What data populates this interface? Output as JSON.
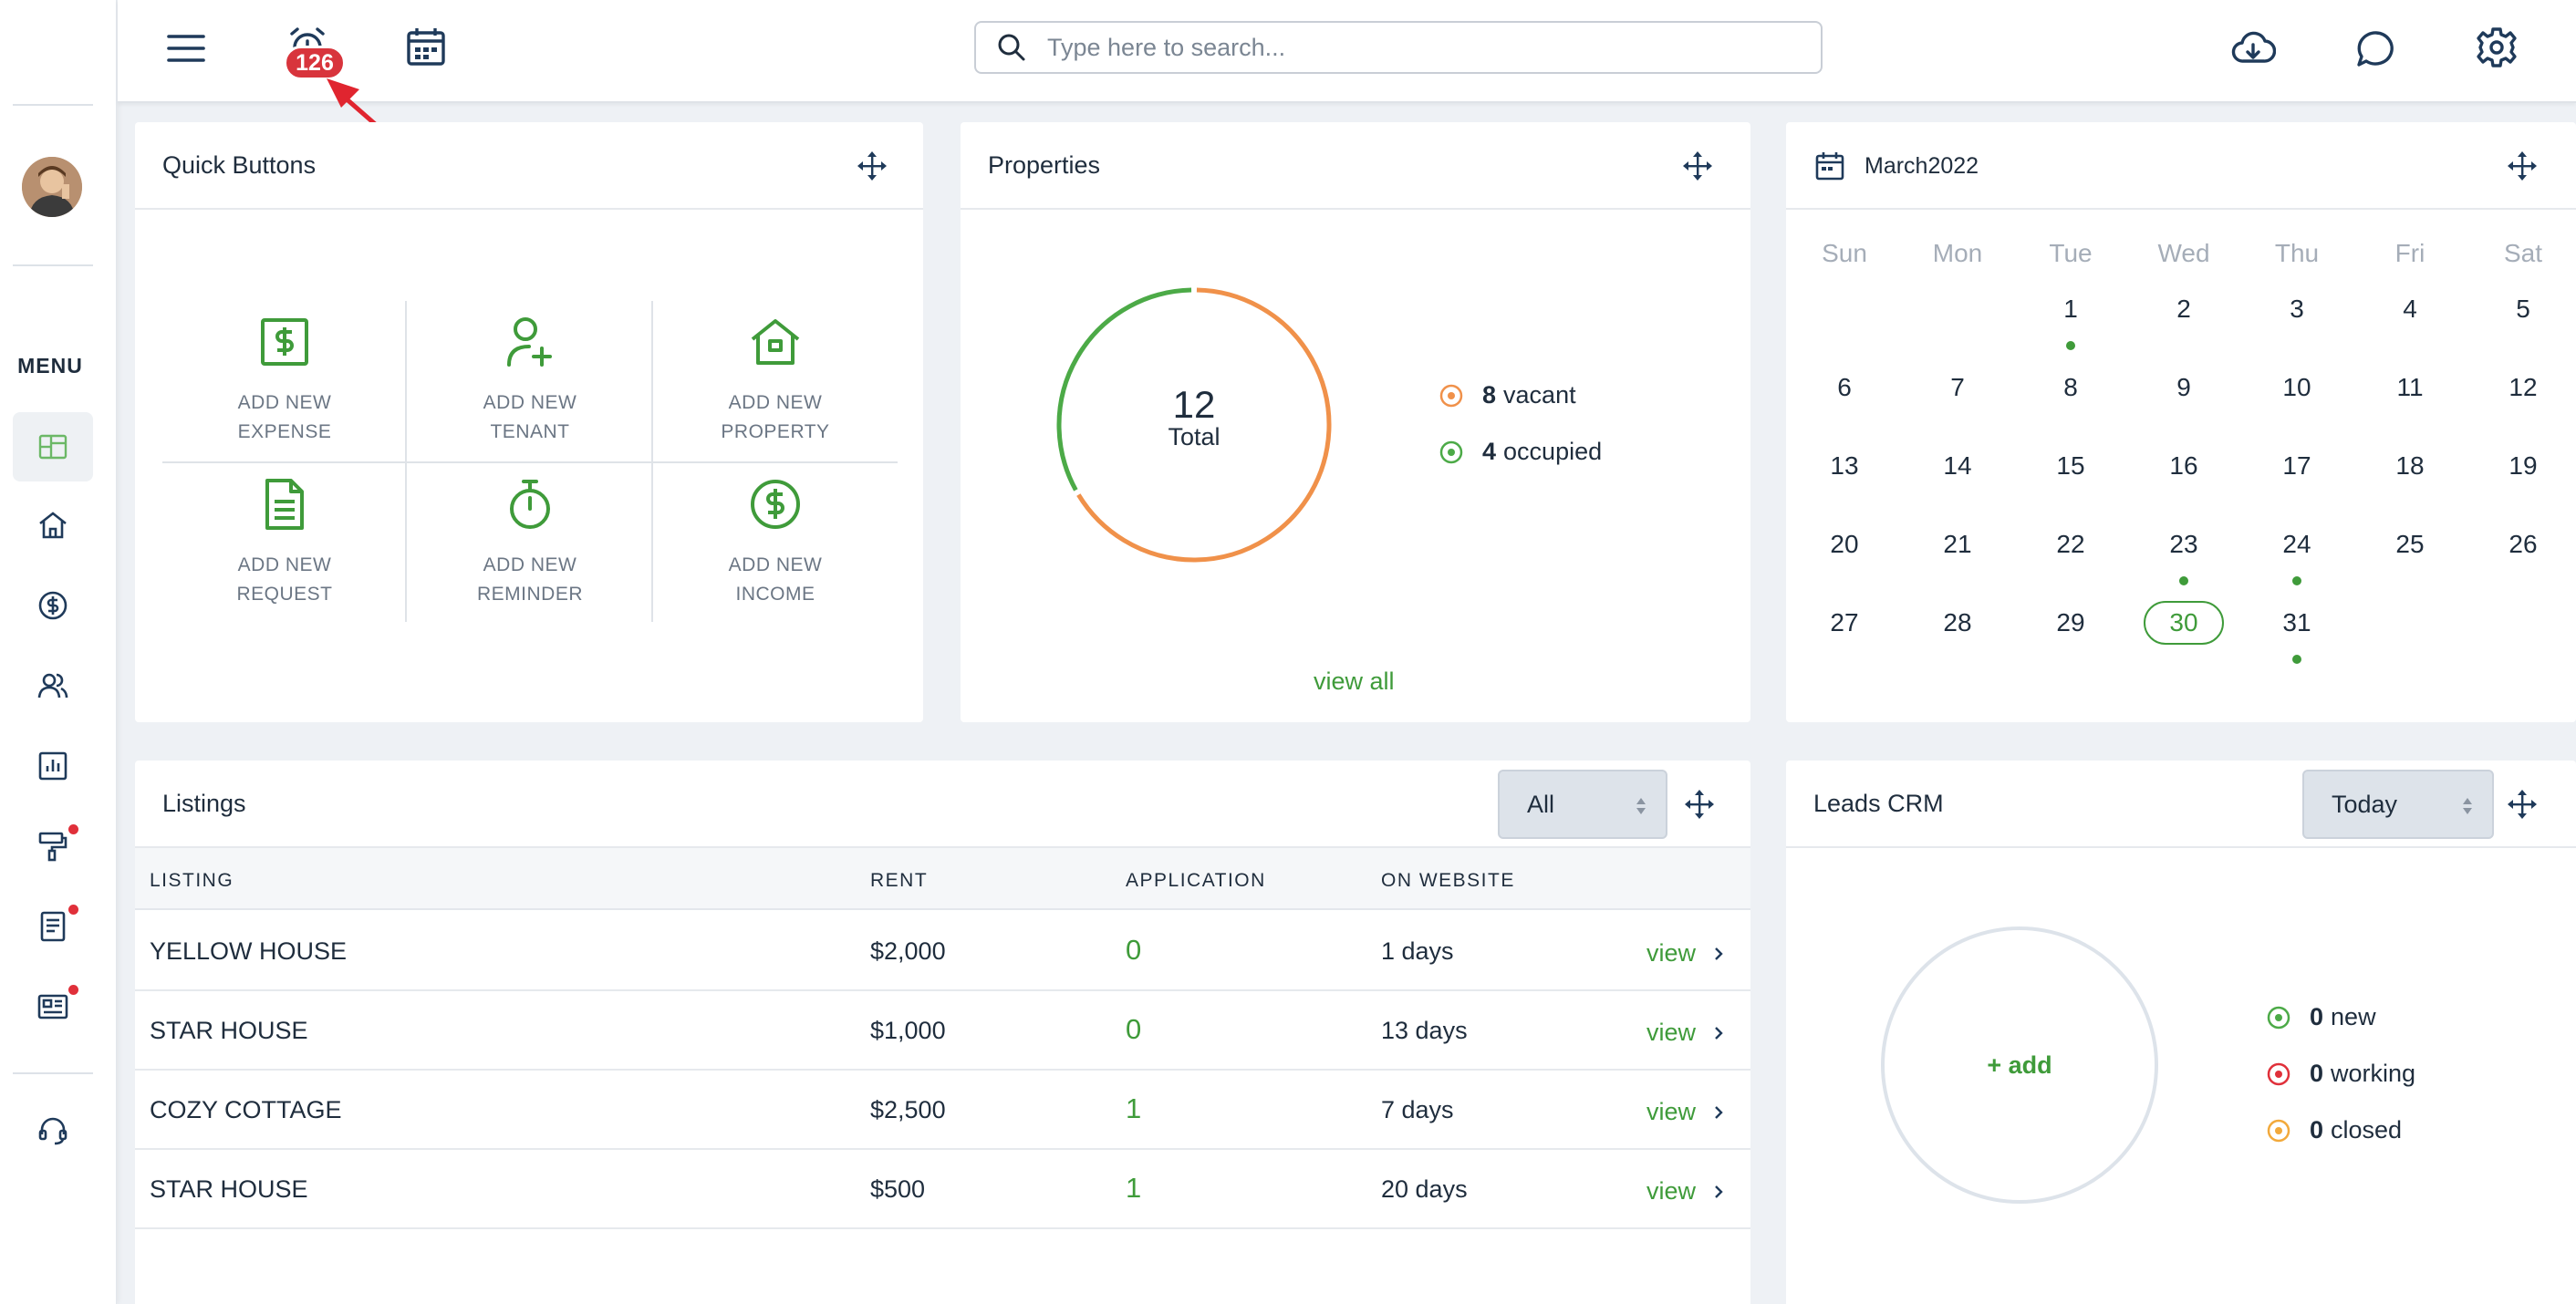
{
  "header": {
    "notification_count": "126",
    "search_placeholder": "Type here to search..."
  },
  "sidebar": {
    "menu_label": "MENU",
    "items": [
      {
        "name": "dashboard",
        "active": true,
        "dot": false
      },
      {
        "name": "home",
        "active": false,
        "dot": false
      },
      {
        "name": "finance",
        "active": false,
        "dot": false
      },
      {
        "name": "tenants",
        "active": false,
        "dot": false
      },
      {
        "name": "reports",
        "active": false,
        "dot": false
      },
      {
        "name": "maintenance",
        "active": false,
        "dot": true
      },
      {
        "name": "documents",
        "active": false,
        "dot": true
      },
      {
        "name": "listings",
        "active": false,
        "dot": true
      },
      {
        "name": "support",
        "active": false,
        "dot": false
      }
    ]
  },
  "quick_buttons": {
    "title": "Quick Buttons",
    "items": [
      {
        "line1": "ADD NEW",
        "line2": "EXPENSE",
        "icon": "dollar-card-icon"
      },
      {
        "line1": "ADD NEW",
        "line2": "TENANT",
        "icon": "user-plus-icon"
      },
      {
        "line1": "ADD NEW",
        "line2": "PROPERTY",
        "icon": "house-icon"
      },
      {
        "line1": "ADD NEW",
        "line2": "REQUEST",
        "icon": "document-icon"
      },
      {
        "line1": "ADD NEW",
        "line2": "REMINDER",
        "icon": "stopwatch-icon"
      },
      {
        "line1": "ADD NEW",
        "line2": "INCOME",
        "icon": "dollar-circle-icon"
      }
    ]
  },
  "properties": {
    "title": "Properties",
    "total": "12",
    "total_label": "Total",
    "vacant_count": "8",
    "vacant_label": "vacant",
    "occupied_count": "4",
    "occupied_label": "occupied",
    "view_all": "view all",
    "colors": {
      "vacant": "#f0914a",
      "occupied": "#4caa47"
    }
  },
  "calendar": {
    "title": "March2022",
    "weekdays": [
      "Sun",
      "Mon",
      "Tue",
      "Wed",
      "Thu",
      "Fri",
      "Sat"
    ],
    "first_weekday": 2,
    "days_in_month": 31,
    "today": 30,
    "event_days": [
      1,
      23,
      24,
      31
    ]
  },
  "listings": {
    "title": "Listings",
    "filter": "All",
    "columns": [
      "LISTING",
      "RENT",
      "APPLICATION",
      "ON WEBSITE"
    ],
    "rows": [
      {
        "listing": "YELLOW HOUSE",
        "rent": "$2,000",
        "application": "0",
        "on_website": "1 days",
        "action": "view"
      },
      {
        "listing": "STAR HOUSE",
        "rent": "$1,000",
        "application": "0",
        "on_website": "13 days",
        "action": "view"
      },
      {
        "listing": "COZY COTTAGE",
        "rent": "$2,500",
        "application": "1",
        "on_website": "7 days",
        "action": "view"
      },
      {
        "listing": "STAR HOUSE",
        "rent": "$500",
        "application": "1",
        "on_website": "20 days",
        "action": "view"
      }
    ]
  },
  "leads": {
    "title": "Leads CRM",
    "filter": "Today",
    "add_label": "+ add",
    "stats": [
      {
        "count": "0",
        "label": "new",
        "color": "#4caa47"
      },
      {
        "count": "0",
        "label": "working",
        "color": "#e0303a"
      },
      {
        "count": "0",
        "label": "closed",
        "color": "#f2a93b"
      }
    ]
  }
}
